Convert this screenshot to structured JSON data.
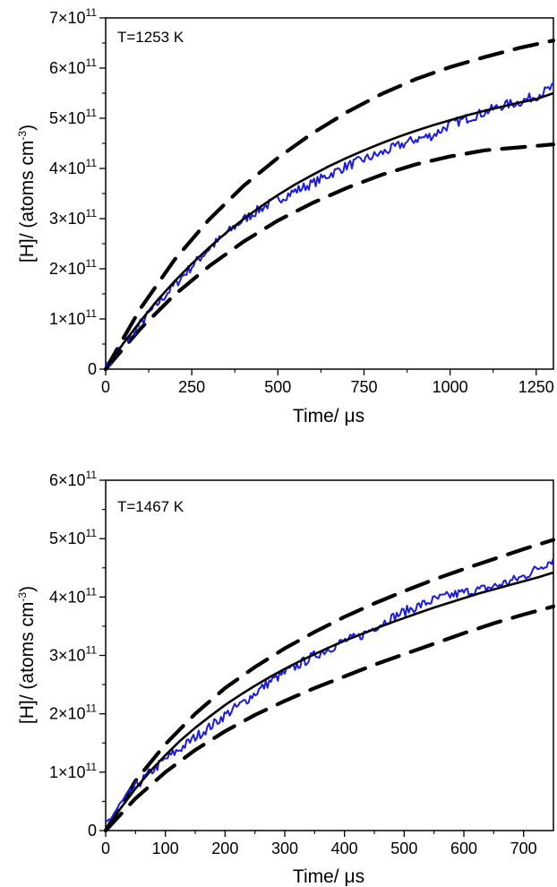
{
  "chart_data": [
    {
      "type": "line",
      "annotation": "T=1253 K",
      "xlabel": "Time/ μs",
      "ylabel": "[H]/ (atoms cm",
      "ylabel_exponent": "-3",
      "ylabel_close": ")",
      "xlim": [
        0,
        1300
      ],
      "ylim": [
        0,
        700000000000.0
      ],
      "x_ticks": [
        0,
        250,
        500,
        750,
        1000,
        1250
      ],
      "x_tick_labels": [
        "0",
        "250",
        "500",
        "750",
        "1000",
        "1250"
      ],
      "y_ticks": [
        0,
        100000000000.0,
        200000000000.0,
        300000000000.0,
        400000000000.0,
        500000000000.0,
        600000000000.0,
        700000000000.0
      ],
      "y_tick_labels": [
        {
          "mantissa": "0",
          "exp": ""
        },
        {
          "mantissa": "1×10",
          "exp": "11"
        },
        {
          "mantissa": "2×10",
          "exp": "11"
        },
        {
          "mantissa": "3×10",
          "exp": "11"
        },
        {
          "mantissa": "4×10",
          "exp": "11"
        },
        {
          "mantissa": "5×10",
          "exp": "11"
        },
        {
          "mantissa": "6×10",
          "exp": "11"
        },
        {
          "mantissa": "7×10",
          "exp": "11"
        }
      ],
      "grid": false,
      "colors": {
        "data": "#1a1ae6",
        "fit": "#000000",
        "bounds": "#000000"
      },
      "series": [
        {
          "style": "noisy-blue",
          "x": [
            0,
            50,
            100,
            150,
            200,
            250,
            300,
            350,
            400,
            450,
            500,
            550,
            600,
            650,
            700,
            750,
            800,
            850,
            900,
            950,
            1000,
            1050,
            1100,
            1150,
            1200,
            1250,
            1300
          ],
          "y": [
            0,
            48000000000.0,
            90000000000.0,
            130000000000.0,
            168000000000.0,
            205000000000.0,
            240000000000.0,
            270000000000.0,
            298000000000.0,
            320000000000.0,
            338000000000.0,
            355000000000.0,
            370000000000.0,
            388000000000.0,
            405000000000.0,
            418000000000.0,
            430000000000.0,
            445000000000.0,
            458000000000.0,
            466000000000.0,
            488000000000.0,
            500000000000.0,
            512000000000.0,
            525000000000.0,
            532000000000.0,
            545000000000.0,
            562000000000.0
          ]
        },
        {
          "style": "solid-black",
          "x": [
            0,
            50,
            100,
            150,
            200,
            250,
            300,
            350,
            400,
            450,
            500,
            550,
            600,
            650,
            700,
            750,
            800,
            850,
            900,
            950,
            1000,
            1050,
            1100,
            1150,
            1200,
            1250,
            1300
          ],
          "y": [
            0,
            50000000000.0,
            95000000000.0,
            137000000000.0,
            175000000000.0,
            210000000000.0,
            242000000000.0,
            272000000000.0,
            299000000000.0,
            324000000000.0,
            347000000000.0,
            368000000000.0,
            387000000000.0,
            405000000000.0,
            421000000000.0,
            436000000000.0,
            450000000000.0,
            463000000000.0,
            475000000000.0,
            486000000000.0,
            496000000000.0,
            506000000000.0,
            515000000000.0,
            523000000000.0,
            531000000000.0,
            538000000000.0,
            550000000000.0
          ]
        },
        {
          "style": "dashed-black",
          "x": [
            0,
            100,
            200,
            300,
            400,
            500,
            600,
            700,
            800,
            900,
            1000,
            1100,
            1200,
            1300
          ],
          "y": [
            0,
            120000000000.0,
            218000000000.0,
            298000000000.0,
            365000000000.0,
            421000000000.0,
            470000000000.0,
            512000000000.0,
            548000000000.0,
            578000000000.0,
            602000000000.0,
            622000000000.0,
            640000000000.0,
            655000000000.0
          ]
        },
        {
          "style": "dashed-black",
          "x": [
            0,
            100,
            200,
            300,
            400,
            500,
            600,
            700,
            800,
            900,
            1000,
            1100,
            1200,
            1300
          ],
          "y": [
            0,
            80000000000.0,
            148000000000.0,
            205000000000.0,
            254000000000.0,
            296000000000.0,
            331000000000.0,
            361000000000.0,
            387000000000.0,
            408000000000.0,
            424000000000.0,
            436000000000.0,
            442000000000.0,
            448000000000.0
          ]
        }
      ]
    },
    {
      "type": "line",
      "annotation": "T=1467 K",
      "xlabel": "Time/ μs",
      "ylabel": "[H]/ (atoms cm",
      "ylabel_exponent": "-3",
      "ylabel_close": ")",
      "xlim": [
        0,
        750
      ],
      "ylim": [
        0,
        600000000000.0
      ],
      "x_ticks": [
        0,
        100,
        200,
        300,
        400,
        500,
        600,
        700
      ],
      "x_tick_labels": [
        "0",
        "100",
        "200",
        "300",
        "400",
        "500",
        "600",
        "700"
      ],
      "y_ticks": [
        0,
        100000000000.0,
        200000000000.0,
        300000000000.0,
        400000000000.0,
        500000000000.0,
        600000000000.0
      ],
      "y_tick_labels": [
        {
          "mantissa": "0",
          "exp": ""
        },
        {
          "mantissa": "1×10",
          "exp": "11"
        },
        {
          "mantissa": "2×10",
          "exp": "11"
        },
        {
          "mantissa": "3×10",
          "exp": "11"
        },
        {
          "mantissa": "4×10",
          "exp": "11"
        },
        {
          "mantissa": "5×10",
          "exp": "11"
        },
        {
          "mantissa": "6×10",
          "exp": "11"
        }
      ],
      "grid": false,
      "colors": {
        "data": "#1a1ae6",
        "fit": "#000000",
        "bounds": "#000000"
      },
      "series": [
        {
          "style": "noisy-blue",
          "x": [
            0,
            25,
            50,
            75,
            100,
            125,
            150,
            175,
            200,
            225,
            250,
            275,
            300,
            325,
            350,
            375,
            400,
            425,
            450,
            475,
            500,
            525,
            550,
            575,
            600,
            625,
            650,
            675,
            700,
            725,
            750
          ],
          "y": [
            10000000000.0,
            45000000000.0,
            75000000000.0,
            100000000000.0,
            122000000000.0,
            140000000000.0,
            160000000000.0,
            178000000000.0,
            198000000000.0,
            215000000000.0,
            235000000000.0,
            255000000000.0,
            270000000000.0,
            285000000000.0,
            300000000000.0,
            312000000000.0,
            325000000000.0,
            332000000000.0,
            348000000000.0,
            362000000000.0,
            375000000000.0,
            385000000000.0,
            395000000000.0,
            402000000000.0,
            408000000000.0,
            412000000000.0,
            418000000000.0,
            426000000000.0,
            435000000000.0,
            450000000000.0,
            465000000000.0
          ]
        },
        {
          "style": "solid-black",
          "x": [
            0,
            25,
            50,
            75,
            100,
            125,
            150,
            175,
            200,
            225,
            250,
            275,
            300,
            325,
            350,
            375,
            400,
            425,
            450,
            475,
            500,
            525,
            550,
            575,
            600,
            625,
            650,
            675,
            700,
            725,
            750
          ],
          "y": [
            0,
            38000000000.0,
            72000000000.0,
            102000000000.0,
            129000000000.0,
            154000000000.0,
            176000000000.0,
            196000000000.0,
            215000000000.0,
            232000000000.0,
            248000000000.0,
            263000000000.0,
            277000000000.0,
            290000000000.0,
            302000000000.0,
            314000000000.0,
            325000000000.0,
            335000000000.0,
            345000000000.0,
            355000000000.0,
            364000000000.0,
            373000000000.0,
            382000000000.0,
            390000000000.0,
            398000000000.0,
            406000000000.0,
            413000000000.0,
            420000000000.0,
            427000000000.0,
            434000000000.0,
            442000000000.0
          ]
        },
        {
          "style": "dashed-black",
          "x": [
            0,
            50,
            100,
            150,
            200,
            250,
            300,
            350,
            400,
            450,
            500,
            550,
            600,
            650,
            700,
            750
          ],
          "y": [
            0,
            85000000000.0,
            148000000000.0,
            200000000000.0,
            244000000000.0,
            280000000000.0,
            312000000000.0,
            340000000000.0,
            366000000000.0,
            389000000000.0,
            410000000000.0,
            430000000000.0,
            448000000000.0,
            465000000000.0,
            482000000000.0,
            498000000000.0
          ]
        },
        {
          "style": "dashed-black",
          "x": [
            0,
            50,
            100,
            150,
            200,
            250,
            300,
            350,
            400,
            450,
            500,
            550,
            600,
            650,
            700,
            750
          ],
          "y": [
            0,
            55000000000.0,
            100000000000.0,
            138000000000.0,
            170000000000.0,
            198000000000.0,
            222000000000.0,
            244000000000.0,
            264000000000.0,
            284000000000.0,
            302000000000.0,
            320000000000.0,
            338000000000.0,
            355000000000.0,
            370000000000.0,
            384000000000.0
          ]
        }
      ]
    }
  ]
}
